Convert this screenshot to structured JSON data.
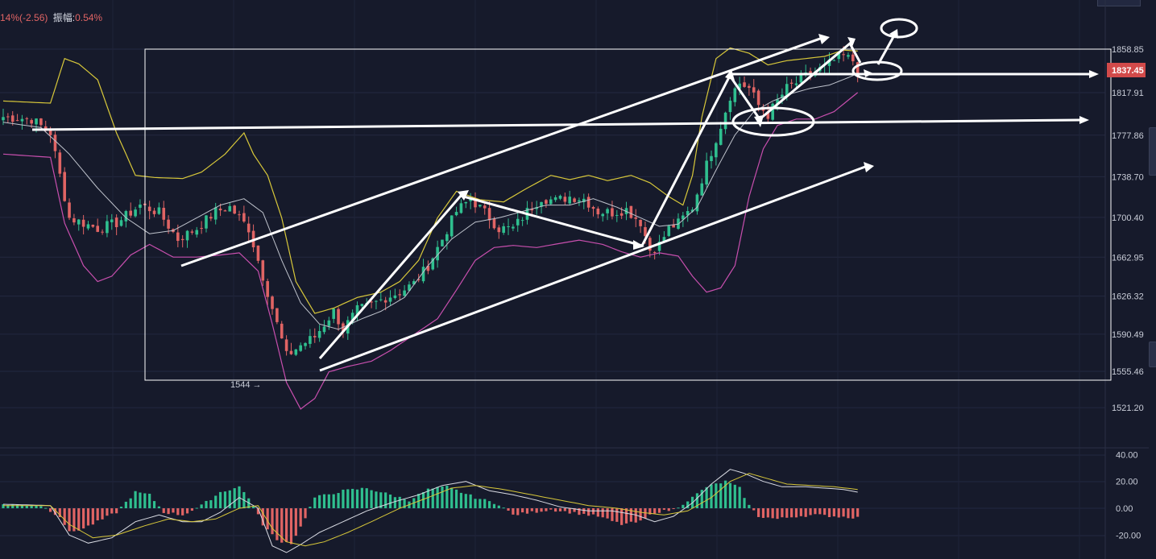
{
  "header": {
    "change_text": "14%(-2.56)",
    "amplitude_label": "振幅:",
    "amplitude_value": "0.54%"
  },
  "colors": {
    "background": "#161a2b",
    "up_candle": "#2fbf8f",
    "down_candle": "#e06464",
    "boll_upper": "#d8c83a",
    "boll_mid": "#bfc3cc",
    "boll_lower": "#c84fae",
    "annotation": "#ffffff",
    "price_tag": "#d24a4a"
  },
  "price_axis": {
    "ticks": [
      "1858.85",
      "1817.91",
      "1777.86",
      "1738.70",
      "1700.40",
      "1662.95",
      "1626.32",
      "1590.49",
      "1555.46",
      "1521.20"
    ],
    "current_price": "1837.45"
  },
  "low_marker": "1544 →",
  "macd_axis": {
    "ticks": [
      "40.00",
      "20.00",
      "0.00",
      "-20.00"
    ]
  },
  "chart_data": [
    {
      "type": "candlestick",
      "title": "",
      "ylim": [
        1505,
        1880
      ],
      "current_price": 1837.45,
      "lowest_marked": 1544,
      "close_anchors": [
        [
          0,
          1795
        ],
        [
          6,
          1793
        ],
        [
          10,
          1780
        ],
        [
          14,
          1700
        ],
        [
          20,
          1690
        ],
        [
          24,
          1695
        ],
        [
          29,
          1712
        ],
        [
          33,
          1705
        ],
        [
          37,
          1680
        ],
        [
          41,
          1690
        ],
        [
          45,
          1706
        ],
        [
          48,
          1710
        ],
        [
          52,
          1690
        ],
        [
          54,
          1660
        ],
        [
          57,
          1615
        ],
        [
          60,
          1570
        ],
        [
          63,
          1580
        ],
        [
          66,
          1588
        ],
        [
          68,
          1600
        ],
        [
          70,
          1612
        ],
        [
          72,
          1595
        ],
        [
          75,
          1613
        ],
        [
          78,
          1618
        ],
        [
          81,
          1625
        ],
        [
          84,
          1630
        ],
        [
          87,
          1638
        ],
        [
          90,
          1655
        ],
        [
          93,
          1680
        ],
        [
          96,
          1706
        ],
        [
          99,
          1718
        ],
        [
          102,
          1705
        ],
        [
          105,
          1690
        ],
        [
          108,
          1690
        ],
        [
          111,
          1706
        ],
        [
          114,
          1719
        ],
        [
          117,
          1716
        ],
        [
          120,
          1720
        ],
        [
          123,
          1718
        ],
        [
          126,
          1706
        ],
        [
          129,
          1705
        ],
        [
          132,
          1708
        ],
        [
          135,
          1696
        ],
        [
          137,
          1670
        ],
        [
          139,
          1675
        ],
        [
          141,
          1690
        ],
        [
          143,
          1695
        ],
        [
          146,
          1710
        ],
        [
          149,
          1750
        ],
        [
          152,
          1787
        ],
        [
          154,
          1815
        ],
        [
          156,
          1827
        ],
        [
          158,
          1822
        ],
        [
          160,
          1806
        ],
        [
          162,
          1797
        ],
        [
          164,
          1810
        ],
        [
          166,
          1822
        ],
        [
          168,
          1827
        ],
        [
          170,
          1833
        ],
        [
          172,
          1838
        ],
        [
          174,
          1842
        ],
        [
          176,
          1848
        ],
        [
          178,
          1852
        ],
        [
          180,
          1848
        ],
        [
          181,
          1838
        ]
      ],
      "bollinger_upper_anchors": [
        [
          0,
          1810
        ],
        [
          10,
          1808
        ],
        [
          13,
          1850
        ],
        [
          16,
          1845
        ],
        [
          20,
          1830
        ],
        [
          24,
          1780
        ],
        [
          28,
          1740
        ],
        [
          32,
          1738
        ],
        [
          38,
          1737
        ],
        [
          42,
          1743
        ],
        [
          47,
          1760
        ],
        [
          51,
          1780
        ],
        [
          53,
          1760
        ],
        [
          56,
          1740
        ],
        [
          59,
          1700
        ],
        [
          62,
          1640
        ],
        [
          66,
          1610
        ],
        [
          70,
          1615
        ],
        [
          75,
          1625
        ],
        [
          80,
          1630
        ],
        [
          84,
          1640
        ],
        [
          88,
          1660
        ],
        [
          92,
          1700
        ],
        [
          96,
          1725
        ],
        [
          101,
          1717
        ],
        [
          106,
          1715
        ],
        [
          111,
          1728
        ],
        [
          116,
          1740
        ],
        [
          120,
          1736
        ],
        [
          124,
          1740
        ],
        [
          128,
          1735
        ],
        [
          133,
          1740
        ],
        [
          137,
          1733
        ],
        [
          141,
          1720
        ],
        [
          144,
          1712
        ],
        [
          146,
          1740
        ],
        [
          148,
          1795
        ],
        [
          151,
          1850
        ],
        [
          154,
          1860
        ],
        [
          158,
          1855
        ],
        [
          162,
          1844
        ],
        [
          166,
          1848
        ],
        [
          170,
          1850
        ],
        [
          174,
          1852
        ],
        [
          178,
          1858
        ],
        [
          181,
          1857
        ]
      ],
      "bollinger_mid_anchors": [
        [
          0,
          1790
        ],
        [
          8,
          1785
        ],
        [
          14,
          1760
        ],
        [
          20,
          1728
        ],
        [
          26,
          1700
        ],
        [
          31,
          1685
        ],
        [
          36,
          1688
        ],
        [
          41,
          1700
        ],
        [
          46,
          1712
        ],
        [
          51,
          1718
        ],
        [
          55,
          1705
        ],
        [
          59,
          1660
        ],
        [
          63,
          1620
        ],
        [
          67,
          1600
        ],
        [
          71,
          1595
        ],
        [
          76,
          1605
        ],
        [
          80,
          1612
        ],
        [
          85,
          1625
        ],
        [
          90,
          1655
        ],
        [
          95,
          1680
        ],
        [
          100,
          1696
        ],
        [
          105,
          1700
        ],
        [
          110,
          1706
        ],
        [
          115,
          1712
        ],
        [
          120,
          1712
        ],
        [
          125,
          1718
        ],
        [
          130,
          1710
        ],
        [
          135,
          1700
        ],
        [
          139,
          1692
        ],
        [
          143,
          1694
        ],
        [
          147,
          1710
        ],
        [
          151,
          1745
        ],
        [
          155,
          1778
        ],
        [
          159,
          1800
        ],
        [
          163,
          1810
        ],
        [
          167,
          1817
        ],
        [
          171,
          1822
        ],
        [
          175,
          1825
        ],
        [
          179,
          1832
        ],
        [
          181,
          1836
        ]
      ],
      "bollinger_lower_anchors": [
        [
          0,
          1760
        ],
        [
          10,
          1757
        ],
        [
          13,
          1695
        ],
        [
          17,
          1655
        ],
        [
          20,
          1640
        ],
        [
          23,
          1645
        ],
        [
          27,
          1665
        ],
        [
          31,
          1675
        ],
        [
          36,
          1663
        ],
        [
          41,
          1663
        ],
        [
          46,
          1665
        ],
        [
          50,
          1667
        ],
        [
          54,
          1650
        ],
        [
          57,
          1600
        ],
        [
          60,
          1545
        ],
        [
          63,
          1520
        ],
        [
          66,
          1530
        ],
        [
          69,
          1555
        ],
        [
          73,
          1560
        ],
        [
          78,
          1565
        ],
        [
          82,
          1575
        ],
        [
          87,
          1590
        ],
        [
          92,
          1605
        ],
        [
          96,
          1632
        ],
        [
          100,
          1660
        ],
        [
          104,
          1672
        ],
        [
          108,
          1674
        ],
        [
          113,
          1672
        ],
        [
          118,
          1676
        ],
        [
          122,
          1679
        ],
        [
          127,
          1675
        ],
        [
          131,
          1668
        ],
        [
          135,
          1663
        ],
        [
          139,
          1667
        ],
        [
          143,
          1664
        ],
        [
          146,
          1645
        ],
        [
          149,
          1630
        ],
        [
          152,
          1634
        ],
        [
          155,
          1655
        ],
        [
          158,
          1720
        ],
        [
          161,
          1765
        ],
        [
          164,
          1787
        ],
        [
          168,
          1793
        ],
        [
          172,
          1793
        ],
        [
          176,
          1800
        ],
        [
          181,
          1818
        ]
      ]
    },
    {
      "type": "bar",
      "title": "",
      "ylim": [
        -30,
        43
      ],
      "histogram_anchors": [
        [
          0,
          3
        ],
        [
          8,
          2
        ],
        [
          12,
          -6
        ],
        [
          14,
          -18
        ],
        [
          17,
          -15
        ],
        [
          20,
          -10
        ],
        [
          24,
          -3
        ],
        [
          28,
          12
        ],
        [
          31,
          10
        ],
        [
          34,
          -3
        ],
        [
          38,
          -5
        ],
        [
          42,
          2
        ],
        [
          46,
          12
        ],
        [
          50,
          16
        ],
        [
          52,
          8
        ],
        [
          55,
          -12
        ],
        [
          58,
          -24
        ],
        [
          61,
          -26
        ],
        [
          63,
          -14
        ],
        [
          66,
          8
        ],
        [
          72,
          13
        ],
        [
          77,
          15
        ],
        [
          82,
          10
        ],
        [
          86,
          6
        ],
        [
          90,
          14
        ],
        [
          94,
          16
        ],
        [
          100,
          8
        ],
        [
          105,
          3
        ],
        [
          108,
          -5
        ],
        [
          112,
          -3
        ],
        [
          116,
          -1
        ],
        [
          120,
          -3
        ],
        [
          126,
          -6
        ],
        [
          131,
          -12
        ],
        [
          135,
          -10
        ],
        [
          138,
          -3
        ],
        [
          142,
          -1
        ],
        [
          146,
          8
        ],
        [
          149,
          16
        ],
        [
          153,
          20
        ],
        [
          156,
          15
        ],
        [
          158,
          2
        ],
        [
          160,
          -6
        ],
        [
          164,
          -8
        ],
        [
          168,
          -6
        ],
        [
          172,
          -5
        ],
        [
          176,
          -6
        ],
        [
          181,
          -7
        ]
      ],
      "line1_anchors": [
        [
          0,
          3
        ],
        [
          10,
          2
        ],
        [
          14,
          -20
        ],
        [
          18,
          -26
        ],
        [
          23,
          -22
        ],
        [
          28,
          -10
        ],
        [
          33,
          -5
        ],
        [
          38,
          -10
        ],
        [
          42,
          -10
        ],
        [
          46,
          -3
        ],
        [
          50,
          8
        ],
        [
          54,
          0
        ],
        [
          57,
          -28
        ],
        [
          60,
          -33
        ],
        [
          63,
          -27
        ],
        [
          67,
          -18
        ],
        [
          72,
          -10
        ],
        [
          77,
          -2
        ],
        [
          83,
          5
        ],
        [
          88,
          10
        ],
        [
          93,
          17
        ],
        [
          98,
          20
        ],
        [
          103,
          13
        ],
        [
          108,
          10
        ],
        [
          113,
          6
        ],
        [
          118,
          1
        ],
        [
          124,
          -2
        ],
        [
          129,
          -2
        ],
        [
          134,
          -5
        ],
        [
          138,
          -10
        ],
        [
          142,
          -6
        ],
        [
          146,
          4
        ],
        [
          150,
          18
        ],
        [
          154,
          29
        ],
        [
          157,
          26
        ],
        [
          161,
          20
        ],
        [
          165,
          16
        ],
        [
          170,
          16
        ],
        [
          174,
          15
        ],
        [
          178,
          14
        ],
        [
          181,
          12
        ]
      ],
      "line2_anchors": [
        [
          0,
          2
        ],
        [
          10,
          2
        ],
        [
          14,
          -12
        ],
        [
          19,
          -22
        ],
        [
          24,
          -20
        ],
        [
          30,
          -13
        ],
        [
          35,
          -8
        ],
        [
          40,
          -10
        ],
        [
          45,
          -8
        ],
        [
          50,
          0
        ],
        [
          54,
          2
        ],
        [
          57,
          -15
        ],
        [
          60,
          -25
        ],
        [
          64,
          -28
        ],
        [
          68,
          -25
        ],
        [
          73,
          -18
        ],
        [
          78,
          -10
        ],
        [
          84,
          0
        ],
        [
          90,
          8
        ],
        [
          95,
          15
        ],
        [
          100,
          17
        ],
        [
          106,
          14
        ],
        [
          112,
          10
        ],
        [
          118,
          6
        ],
        [
          124,
          2
        ],
        [
          130,
          0
        ],
        [
          135,
          -3
        ],
        [
          140,
          -5
        ],
        [
          145,
          -2
        ],
        [
          150,
          8
        ],
        [
          154,
          20
        ],
        [
          158,
          26
        ],
        [
          162,
          22
        ],
        [
          166,
          18
        ],
        [
          171,
          17
        ],
        [
          176,
          16
        ],
        [
          181,
          14
        ]
      ]
    }
  ]
}
